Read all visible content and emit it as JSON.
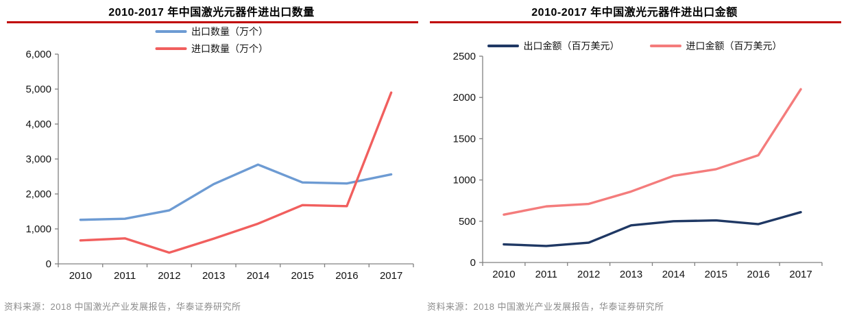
{
  "panels": [
    {
      "source": "资料来源：2018 中国激光产业发展报告，华泰证券研究所"
    },
    {
      "source": "资料来源：2018 中国激光产业发展报告，华泰证券研究所"
    }
  ],
  "chart_data": [
    {
      "type": "line",
      "title": "2010-2017 年中国激光元器件进出口数量",
      "categories": [
        "2010",
        "2011",
        "2012",
        "2013",
        "2014",
        "2015",
        "2016",
        "2017"
      ],
      "series": [
        {
          "name": "出口数量（万个）",
          "color": "#6d9bd3",
          "values": [
            1260,
            1290,
            1530,
            2280,
            2840,
            2330,
            2300,
            2560
          ]
        },
        {
          "name": "进口数量（万个）",
          "color": "#f15f5e",
          "values": [
            670,
            730,
            320,
            720,
            1150,
            1680,
            1650,
            4900
          ]
        }
      ],
      "ylim": [
        0,
        6000
      ],
      "ytick_step": 1000,
      "ytick_format": "thousands",
      "ytick_labels": [
        "0",
        "1,000",
        "2,000",
        "3,000",
        "4,000",
        "5,000",
        "6,000"
      ],
      "legend_position": "top-stacked",
      "grid": false,
      "xlabel": "",
      "ylabel": ""
    },
    {
      "type": "line",
      "title": "2010-2017 年中国激光元器件进出口金额",
      "categories": [
        "2010",
        "2011",
        "2012",
        "2013",
        "2014",
        "2015",
        "2016",
        "2017"
      ],
      "series": [
        {
          "name": "出口金额（百万美元）",
          "color": "#1f3864",
          "values": [
            220,
            200,
            240,
            450,
            500,
            510,
            465,
            610
          ]
        },
        {
          "name": "进口金额（百万美元）",
          "color": "#f47c7c",
          "values": [
            580,
            680,
            710,
            860,
            1050,
            1130,
            1300,
            2100
          ]
        }
      ],
      "ylim": [
        0,
        2500
      ],
      "ytick_step": 500,
      "ytick_format": "plain",
      "ytick_labels": [
        "0",
        "500",
        "1000",
        "1500",
        "2000",
        "2500"
      ],
      "legend_position": "top-row",
      "grid": false,
      "xlabel": "",
      "ylabel": ""
    }
  ],
  "accent": {
    "title_underline": "#c00000",
    "axis_color": "#808080",
    "tick_label_color": "#111111",
    "source_text_color": "#8c8c8c"
  }
}
